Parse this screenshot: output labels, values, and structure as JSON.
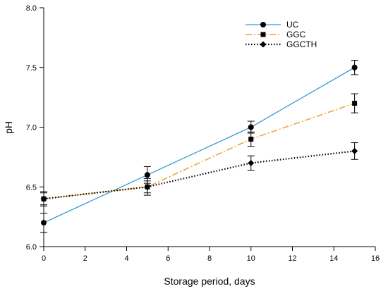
{
  "chart_data": {
    "type": "line",
    "xlabel": "Storage period, days",
    "ylabel": "pH",
    "xlim": [
      0,
      16
    ],
    "ylim": [
      6.0,
      8.0
    ],
    "xticks": [
      0,
      2,
      4,
      6,
      8,
      10,
      12,
      14,
      16
    ],
    "yticks": [
      6.0,
      6.5,
      7.0,
      7.5,
      8.0
    ],
    "ytick_labels": [
      "6.0",
      "6.5",
      "7.0",
      "7.5",
      "8.0"
    ],
    "grid": false,
    "legend_position": "top-right",
    "series": [
      {
        "name": "UC",
        "color": "#3a9bd5",
        "line_style": "solid",
        "marker": "circle",
        "x": [
          0,
          5,
          10,
          15
        ],
        "values": [
          6.2,
          6.6,
          7.0,
          7.5
        ],
        "errors": [
          0.08,
          0.07,
          0.05,
          0.06
        ]
      },
      {
        "name": "GGC",
        "color": "#f0a030",
        "line_style": "dashdot",
        "marker": "square",
        "x": [
          0,
          5,
          10,
          15
        ],
        "values": [
          6.4,
          6.5,
          6.9,
          7.2
        ],
        "errors": [
          0.06,
          0.07,
          0.06,
          0.08
        ]
      },
      {
        "name": "GGCTH",
        "color": "#000000",
        "line_style": "dotted",
        "marker": "diamond",
        "x": [
          0,
          5,
          10,
          15
        ],
        "values": [
          6.4,
          6.5,
          6.7,
          6.8
        ],
        "errors": [
          0.05,
          0.05,
          0.06,
          0.07
        ]
      }
    ]
  }
}
